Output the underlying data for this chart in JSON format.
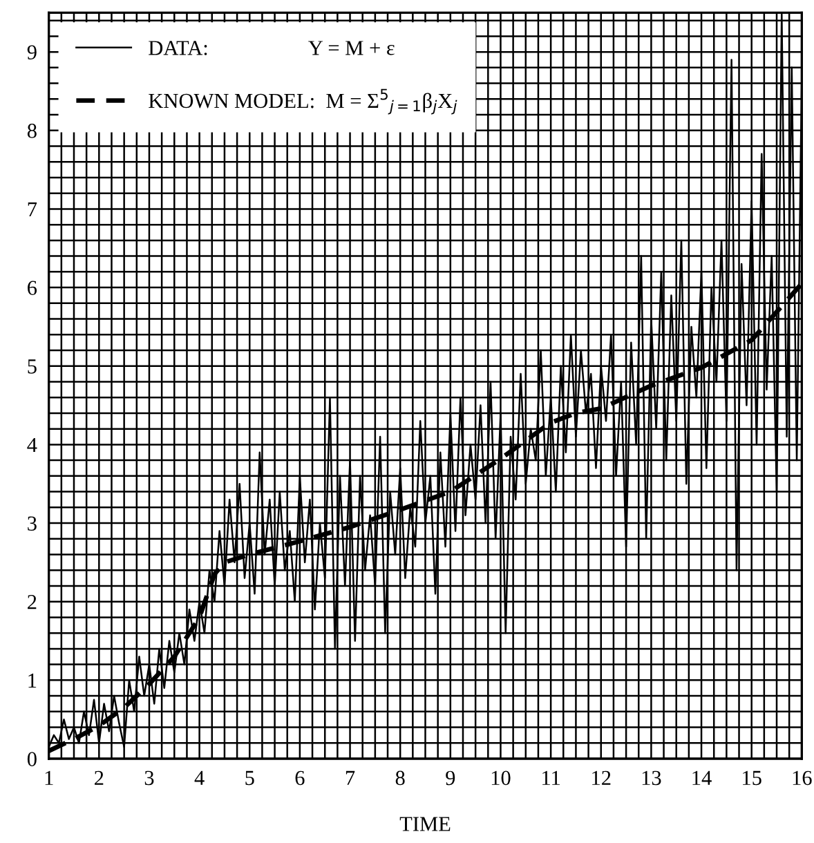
{
  "chart_data": {
    "type": "line",
    "xlabel": "TIME",
    "xlim": [
      1,
      16
    ],
    "ylim": [
      0,
      9.5
    ],
    "xticks": [
      1,
      {
        "value": 1.25,
        "label": null
      },
      {
        "value": 1.5,
        "label": null
      },
      {
        "value": 1.75,
        "label": null
      },
      2,
      {
        "value": 2.25,
        "label": null
      },
      {
        "value": 2.5,
        "label": null
      },
      {
        "value": 2.75,
        "label": null
      },
      3,
      {
        "value": 3.25,
        "label": null
      },
      {
        "value": 3.5,
        "label": null
      },
      {
        "value": 3.75,
        "label": null
      },
      4,
      {
        "value": 4.25,
        "label": null
      },
      {
        "value": 4.5,
        "label": null
      },
      {
        "value": 4.75,
        "label": null
      },
      5,
      {
        "value": 5.25,
        "label": null
      },
      {
        "value": 5.5,
        "label": null
      },
      {
        "value": 5.75,
        "label": null
      },
      6,
      {
        "value": 6.25,
        "label": null
      },
      {
        "value": 6.5,
        "label": null
      },
      {
        "value": 6.75,
        "label": null
      },
      7,
      {
        "value": 7.25,
        "label": null
      },
      {
        "value": 7.5,
        "label": null
      },
      {
        "value": 7.75,
        "label": null
      },
      8,
      {
        "value": 8.25,
        "label": null
      },
      {
        "value": 8.5,
        "label": null
      },
      {
        "value": 8.75,
        "label": null
      },
      9,
      {
        "value": 9.25,
        "label": null
      },
      {
        "value": 9.5,
        "label": null
      },
      {
        "value": 9.75,
        "label": null
      },
      10,
      {
        "value": 10.25,
        "label": null
      },
      {
        "value": 10.5,
        "label": null
      },
      {
        "value": 10.75,
        "label": null
      },
      11,
      {
        "value": 11.25,
        "label": null
      },
      {
        "value": 11.5,
        "label": null
      },
      {
        "value": 11.75,
        "label": null
      },
      12,
      {
        "value": 12.25,
        "label": null
      },
      {
        "value": 12.5,
        "label": null
      },
      {
        "value": 12.75,
        "label": null
      },
      13,
      {
        "value": 13.25,
        "label": null
      },
      {
        "value": 13.5,
        "label": null
      },
      {
        "value": 13.75,
        "label": null
      },
      14,
      {
        "value": 14.25,
        "label": null
      },
      {
        "value": 14.5,
        "label": null
      },
      {
        "value": 14.75,
        "label": null
      },
      15,
      {
        "value": 15.25,
        "label": null
      },
      {
        "value": 15.5,
        "label": null
      },
      {
        "value": 15.75,
        "label": null
      },
      16
    ],
    "yticks": [
      0,
      {
        "value": 0.2,
        "label": null
      },
      {
        "value": 0.4,
        "label": null
      },
      {
        "value": 0.6,
        "label": null
      },
      {
        "value": 0.8,
        "label": null
      },
      1,
      {
        "value": 1.2,
        "label": null
      },
      {
        "value": 1.4,
        "label": null
      },
      {
        "value": 1.6,
        "label": null
      },
      {
        "value": 1.8,
        "label": null
      },
      2,
      {
        "value": 2.2,
        "label": null
      },
      {
        "value": 2.4,
        "label": null
      },
      {
        "value": 2.6,
        "label": null
      },
      {
        "value": 2.8,
        "label": null
      },
      3,
      {
        "value": 3.2,
        "label": null
      },
      {
        "value": 3.4,
        "label": null
      },
      {
        "value": 3.6,
        "label": null
      },
      {
        "value": 3.8,
        "label": null
      },
      4,
      {
        "value": 4.2,
        "label": null
      },
      {
        "value": 4.4,
        "label": null
      },
      {
        "value": 4.6,
        "label": null
      },
      {
        "value": 4.8,
        "label": null
      },
      5,
      {
        "value": 5.2,
        "label": null
      },
      {
        "value": 5.4,
        "label": null
      },
      {
        "value": 5.6,
        "label": null
      },
      {
        "value": 5.8,
        "label": null
      },
      6,
      {
        "value": 6.2,
        "label": null
      },
      {
        "value": 6.4,
        "label": null
      },
      {
        "value": 6.6,
        "label": null
      },
      {
        "value": 6.8,
        "label": null
      },
      7,
      {
        "value": 7.2,
        "label": null
      },
      {
        "value": 7.4,
        "label": null
      },
      {
        "value": 7.6,
        "label": null
      },
      {
        "value": 7.8,
        "label": null
      },
      8,
      {
        "value": 8.2,
        "label": null
      },
      {
        "value": 8.4,
        "label": null
      },
      {
        "value": 8.6,
        "label": null
      },
      {
        "value": 8.8,
        "label": null
      },
      9,
      {
        "value": 9.2,
        "label": null
      },
      {
        "value": 9.4,
        "label": null
      }
    ],
    "grid": true,
    "legend": "top left",
    "series": [
      {
        "name": "DATA:                   Y = M + ε",
        "color": "#000000",
        "line_style": "solid",
        "x": [
          1.0,
          1.1,
          1.2,
          1.3,
          1.4,
          1.5,
          1.6,
          1.7,
          1.8,
          1.9,
          2.0,
          2.1,
          2.2,
          2.3,
          2.4,
          2.5,
          2.6,
          2.7,
          2.8,
          2.9,
          3.0,
          3.1,
          3.2,
          3.3,
          3.4,
          3.5,
          3.6,
          3.7,
          3.8,
          3.9,
          4.0,
          4.1,
          4.2,
          4.3,
          4.4,
          4.5,
          4.6,
          4.7,
          4.8,
          4.9,
          5.0,
          5.1,
          5.2,
          5.3,
          5.4,
          5.5,
          5.6,
          5.7,
          5.8,
          5.9,
          6.0,
          6.1,
          6.2,
          6.3,
          6.4,
          6.5,
          6.6,
          6.7,
          6.8,
          6.9,
          7.0,
          7.1,
          7.2,
          7.3,
          7.4,
          7.5,
          7.6,
          7.7,
          7.8,
          7.9,
          8.0,
          8.1,
          8.2,
          8.3,
          8.4,
          8.5,
          8.6,
          8.7,
          8.8,
          8.9,
          9.0,
          9.1,
          9.2,
          9.3,
          9.4,
          9.5,
          9.6,
          9.7,
          9.8,
          9.9,
          10.0,
          10.1,
          10.2,
          10.3,
          10.4,
          10.5,
          10.6,
          10.7,
          10.8,
          10.9,
          11.0,
          11.1,
          11.2,
          11.3,
          11.4,
          11.5,
          11.6,
          11.7,
          11.8,
          11.9,
          12.0,
          12.1,
          12.2,
          12.3,
          12.4,
          12.5,
          12.6,
          12.7,
          12.8,
          12.9,
          13.0,
          13.1,
          13.2,
          13.3,
          13.4,
          13.5,
          13.6,
          13.7,
          13.8,
          13.9,
          14.0,
          14.1,
          14.2,
          14.3,
          14.4,
          14.5,
          14.6,
          14.7,
          14.8,
          14.9,
          15.0,
          15.1,
          15.2,
          15.3,
          15.4,
          15.5,
          15.6,
          15.7,
          15.8,
          15.9,
          16.0
        ],
        "values": [
          0.15,
          0.3,
          0.2,
          0.5,
          0.25,
          0.4,
          0.2,
          0.6,
          0.3,
          0.75,
          0.2,
          0.7,
          0.35,
          0.8,
          0.45,
          0.15,
          1.0,
          0.6,
          1.3,
          0.8,
          1.2,
          0.7,
          1.4,
          0.9,
          1.5,
          1.1,
          1.6,
          1.2,
          1.9,
          1.5,
          2.0,
          1.6,
          2.4,
          2.0,
          2.9,
          2.2,
          3.3,
          2.5,
          3.5,
          2.3,
          3.0,
          2.1,
          3.9,
          2.6,
          3.3,
          2.2,
          3.4,
          2.4,
          2.9,
          2.0,
          3.6,
          2.5,
          3.3,
          1.9,
          3.0,
          2.3,
          4.6,
          1.4,
          3.6,
          2.2,
          3.8,
          1.5,
          3.6,
          2.4,
          3.1,
          2.2,
          4.1,
          1.6,
          3.4,
          2.6,
          3.7,
          2.3,
          3.2,
          2.7,
          4.3,
          3.0,
          3.6,
          2.1,
          3.9,
          2.7,
          4.4,
          2.9,
          4.6,
          3.1,
          4.0,
          3.3,
          4.5,
          3.0,
          4.8,
          2.8,
          4.4,
          1.6,
          4.1,
          3.3,
          4.9,
          3.5,
          4.2,
          3.8,
          5.2,
          3.6,
          4.6,
          3.4,
          5.0,
          3.9,
          5.4,
          4.1,
          5.2,
          4.4,
          4.9,
          3.7,
          5.0,
          4.3,
          5.4,
          3.6,
          4.8,
          2.7,
          5.3,
          4.0,
          6.4,
          2.8,
          5.6,
          4.2,
          6.2,
          3.8,
          5.9,
          4.3,
          6.6,
          3.5,
          5.5,
          4.6,
          6.2,
          3.7,
          6.0,
          4.8,
          6.6,
          4.3,
          8.9,
          2.4,
          6.3,
          4.5,
          7.1,
          4.0,
          7.7,
          4.7,
          6.4,
          3.4,
          9.5,
          4.1,
          8.8,
          3.8,
          8.7
        ]
      },
      {
        "name": "KNOWN MODEL:  M = Σ$^{5}$$_{j=1}$β$_{j}$X$_{j}$",
        "color": "#000000",
        "line_style": "dashed",
        "x": [
          1,
          1.5,
          2,
          2.5,
          3,
          3.5,
          4,
          4.3,
          4.5,
          5,
          6,
          7,
          8,
          9,
          10,
          10.5,
          11,
          11.5,
          12,
          13,
          14,
          15,
          16
        ],
        "values": [
          0.1,
          0.25,
          0.42,
          0.65,
          0.95,
          1.3,
          1.8,
          2.35,
          2.5,
          2.6,
          2.77,
          2.95,
          3.17,
          3.4,
          3.82,
          4.05,
          4.28,
          4.4,
          4.46,
          4.75,
          4.98,
          5.33,
          6.05
        ]
      }
    ]
  }
}
